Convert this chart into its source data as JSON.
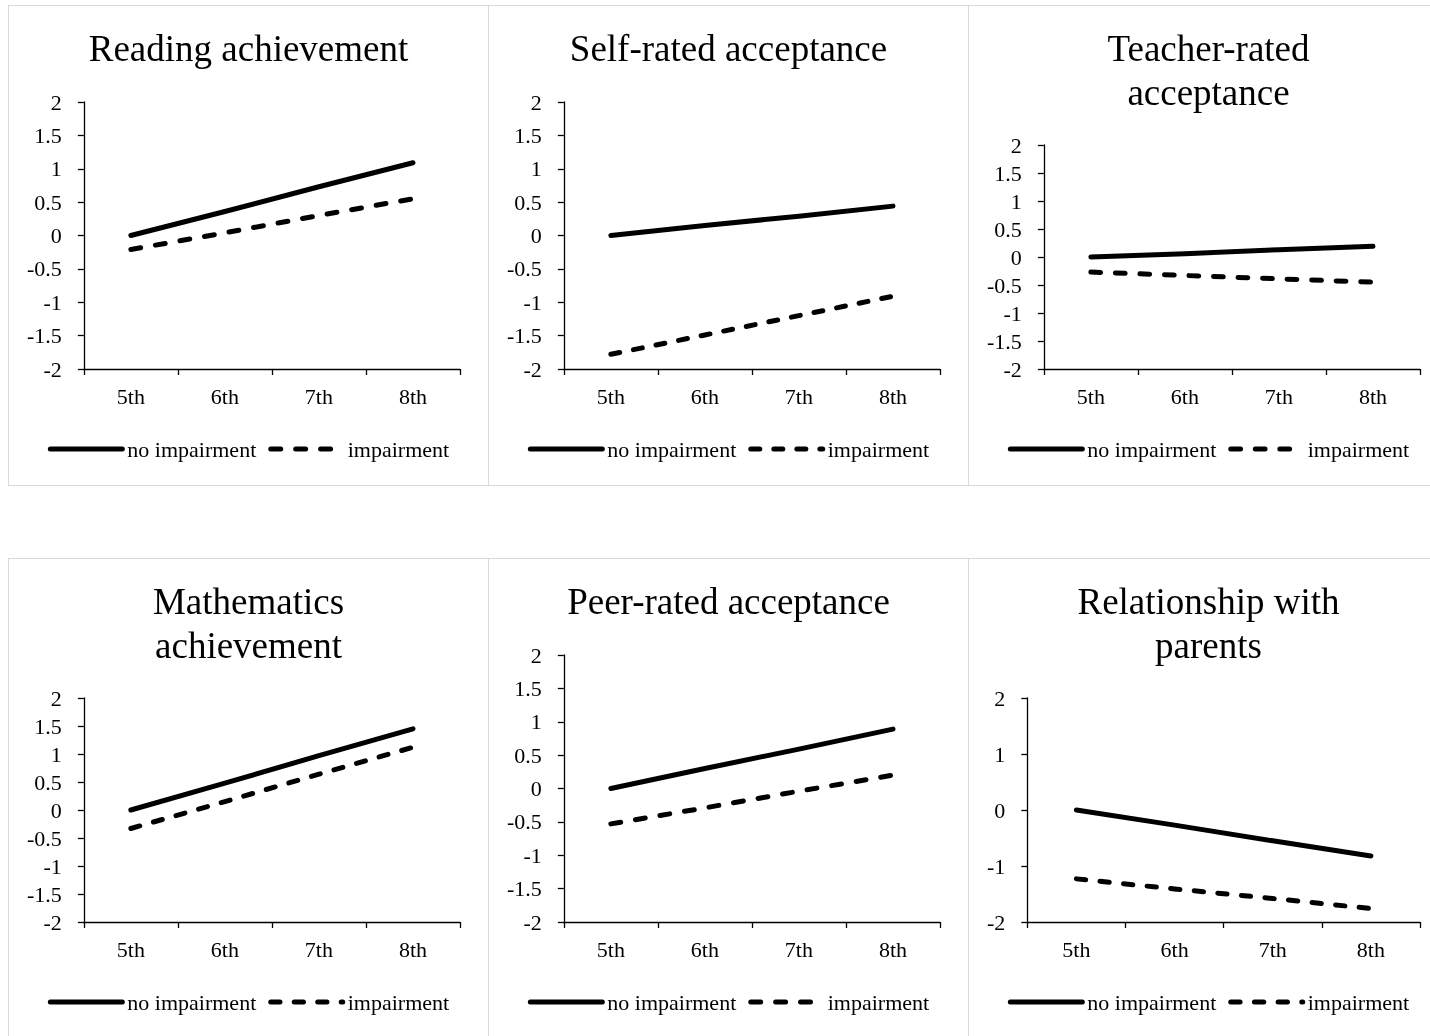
{
  "chart_data": [
    {
      "type": "line",
      "title": "Reading achievement",
      "categories": [
        "5th",
        "6th",
        "7th",
        "8th"
      ],
      "series": [
        {
          "name": "no impairment",
          "color": "#000000",
          "line_style": "solid",
          "values": [
            0,
            0.36,
            0.73,
            1.09
          ]
        },
        {
          "name": "impairment",
          "color": "#000000",
          "line_style": "dashed",
          "values": [
            -0.21,
            0.04,
            0.3,
            0.55
          ]
        }
      ],
      "ylim": [
        -2,
        2
      ],
      "yticks": [
        -2,
        -1.5,
        -1,
        -0.5,
        0,
        0.5,
        1,
        1.5,
        2
      ],
      "grid": false,
      "legend": "bottom",
      "marker": "none"
    },
    {
      "type": "line",
      "title": "Self-rated acceptance",
      "categories": [
        "5th",
        "6th",
        "7th",
        "8th"
      ],
      "series": [
        {
          "name": "no impairment",
          "color": "#000000",
          "line_style": "solid",
          "values": [
            0,
            0.15,
            0.29,
            0.44
          ]
        },
        {
          "name": "impairment",
          "color": "#000000",
          "line_style": "dashed",
          "values": [
            -1.78,
            -1.49,
            -1.2,
            -0.91
          ]
        }
      ],
      "ylim": [
        -2,
        2
      ],
      "yticks": [
        -2,
        -1.5,
        -1,
        -0.5,
        0,
        0.5,
        1,
        1.5,
        2
      ],
      "grid": false,
      "legend": "bottom",
      "marker": "none"
    },
    {
      "type": "line",
      "title": "Teacher-rated acceptance",
      "categories": [
        "5th",
        "6th",
        "7th",
        "8th"
      ],
      "series": [
        {
          "name": "no impairment",
          "color": "#000000",
          "line_style": "solid",
          "values": [
            0,
            0.06,
            0.13,
            0.19
          ]
        },
        {
          "name": "impairment",
          "color": "#000000",
          "line_style": "dashed",
          "values": [
            -0.27,
            -0.33,
            -0.39,
            -0.45
          ]
        }
      ],
      "ylim": [
        -2,
        2
      ],
      "yticks": [
        -2,
        -1.5,
        -1,
        -0.5,
        0,
        0.5,
        1,
        1.5,
        2
      ],
      "grid": false,
      "legend": "bottom",
      "marker": "none"
    },
    {
      "type": "line",
      "title": "Mathematics achievement",
      "categories": [
        "5th",
        "6th",
        "7th",
        "8th"
      ],
      "series": [
        {
          "name": "no impairment",
          "color": "#000000",
          "line_style": "solid",
          "values": [
            0,
            0.48,
            0.97,
            1.45
          ]
        },
        {
          "name": "impairment",
          "color": "#000000",
          "line_style": "dashed",
          "values": [
            -0.33,
            0.15,
            0.64,
            1.12
          ]
        }
      ],
      "ylim": [
        -2,
        2
      ],
      "yticks": [
        -2,
        -1.5,
        -1,
        -0.5,
        0,
        0.5,
        1,
        1.5,
        2
      ],
      "grid": false,
      "legend": "bottom",
      "marker": "none"
    },
    {
      "type": "line",
      "title": "Peer-rated acceptance",
      "categories": [
        "5th",
        "6th",
        "7th",
        "8th"
      ],
      "series": [
        {
          "name": "no impairment",
          "color": "#000000",
          "line_style": "solid",
          "values": [
            0,
            0.3,
            0.59,
            0.89
          ]
        },
        {
          "name": "impairment",
          "color": "#000000",
          "line_style": "dashed",
          "values": [
            -0.53,
            -0.29,
            -0.04,
            0.2
          ]
        }
      ],
      "ylim": [
        -2,
        2
      ],
      "yticks": [
        -2,
        -1.5,
        -1,
        -0.5,
        0,
        0.5,
        1,
        1.5,
        2
      ],
      "grid": false,
      "legend": "bottom",
      "marker": "none"
    },
    {
      "type": "line",
      "title": "Relationship with parents",
      "categories": [
        "5th",
        "6th",
        "7th",
        "8th"
      ],
      "series": [
        {
          "name": "no impairment",
          "color": "#000000",
          "line_style": "solid",
          "values": [
            0,
            -0.27,
            -0.55,
            -0.82
          ]
        },
        {
          "name": "impairment",
          "color": "#000000",
          "line_style": "dashed",
          "values": [
            -1.23,
            -1.41,
            -1.58,
            -1.76
          ]
        }
      ],
      "ylim": [
        -2,
        2
      ],
      "yticks": [
        -2,
        -1,
        0,
        1,
        2
      ],
      "grid": false,
      "legend": "bottom",
      "marker": "none"
    }
  ]
}
